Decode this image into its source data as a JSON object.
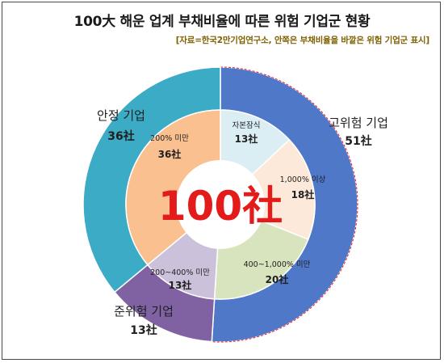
{
  "title": "100大 해운 업계 부채비율에 따른 위험 기업군 현황",
  "subtitle": "[자료=한국2만기업연구소, 안쪽은 부채비율을 바깥은 위험 기업군 표시]",
  "center_label": "100社",
  "chart_data": [
    {
      "type": "pie",
      "variant": "donut-outer",
      "total": 100,
      "slices": [
        {
          "label": "고위험 기업",
          "value": 51,
          "value_label": "51社",
          "color": "#4f78c8"
        },
        {
          "label": "준위험 기업",
          "value": 13,
          "value_label": "13社",
          "color": "#8062a3"
        },
        {
          "label": "안정 기업",
          "value": 36,
          "value_label": "36社",
          "color": "#3cabc5"
        }
      ]
    },
    {
      "type": "pie",
      "variant": "donut-inner",
      "total": 100,
      "slices": [
        {
          "label": "자본잠식",
          "value": 13,
          "value_label": "13社",
          "color": "#dbeef4"
        },
        {
          "label": "1,000% 이상",
          "value": 18,
          "value_label": "18社",
          "color": "#fde9d9"
        },
        {
          "label": "400~1,000% 미만",
          "value": 20,
          "value_label": "20社",
          "color": "#d7e4bd"
        },
        {
          "label": "200~400% 미만",
          "value": 13,
          "value_label": "13社",
          "color": "#ccc1da"
        },
        {
          "label": "200% 미만",
          "value": 36,
          "value_label": "36社",
          "color": "#fac090"
        }
      ]
    }
  ],
  "colors": {
    "center_text": "#e31b1b",
    "outer_label": "#1f1f1f",
    "inner_label": "#1f1f1f",
    "dashed_border": "#e41b2a"
  }
}
